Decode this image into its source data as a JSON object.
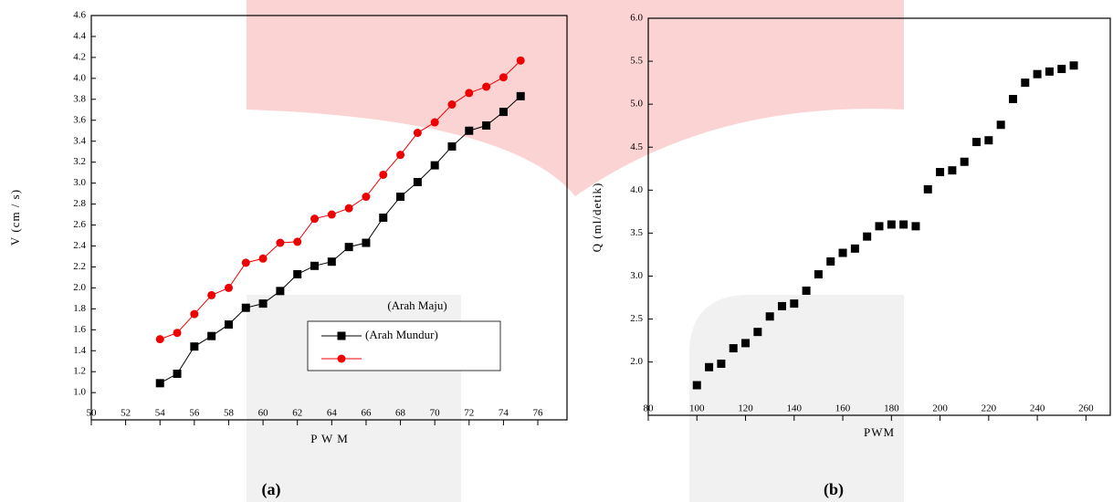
{
  "chart_data": [
    {
      "type": "line",
      "caption": "(a)",
      "x_label": "P W M",
      "y_label": "V (cm / s)",
      "x": [
        54,
        55,
        56,
        57,
        58,
        59,
        60,
        61,
        62,
        63,
        64,
        65,
        66,
        67,
        68,
        69,
        70,
        71,
        72,
        73,
        74,
        75
      ],
      "series": [
        {
          "name": "(Arah Mundur)",
          "color": "#000000",
          "marker": "square",
          "values": [
            1.09,
            1.18,
            1.44,
            1.54,
            1.65,
            1.81,
            1.85,
            1.97,
            2.13,
            2.21,
            2.25,
            2.39,
            2.43,
            2.67,
            2.87,
            3.01,
            3.17,
            3.35,
            3.5,
            3.55,
            3.68,
            3.83
          ]
        },
        {
          "name": "(Arah Maju)",
          "color": "#ee0000",
          "marker": "circle",
          "values": [
            1.51,
            1.57,
            1.75,
            1.93,
            2.0,
            2.24,
            2.28,
            2.43,
            2.44,
            2.66,
            2.7,
            2.76,
            2.87,
            3.08,
            3.27,
            3.48,
            3.58,
            3.75,
            3.86,
            3.92,
            4.01,
            4.17
          ]
        }
      ],
      "xlim": [
        50,
        77.7
      ],
      "xticks": [
        50,
        52,
        54,
        56,
        58,
        60,
        62,
        64,
        66,
        68,
        70,
        72,
        74,
        76
      ],
      "ylim": [
        0.74,
        4.6
      ],
      "yticks": [
        {
          "value": 1.0,
          "label": "1.0"
        },
        1.2,
        1.4,
        1.6,
        1.8,
        {
          "value": 2.0,
          "label": "2.0"
        },
        2.2,
        2.4,
        2.6,
        2.8,
        {
          "value": 3.0,
          "label": "3.0"
        },
        3.2,
        3.4,
        3.6,
        3.8,
        {
          "value": 4.0,
          "label": "4.0"
        },
        4.2,
        4.4,
        4.6
      ],
      "grid": false
    },
    {
      "type": "scatter",
      "caption": "(b)",
      "x_label": "PWM",
      "y_label": "Q (ml/detik)",
      "x": [
        100,
        105,
        110,
        115,
        120,
        125,
        130,
        135,
        140,
        145,
        150,
        155,
        160,
        165,
        170,
        175,
        180,
        185,
        190,
        195,
        200,
        205,
        210,
        215,
        220,
        225,
        230,
        235,
        240,
        245,
        250,
        255
      ],
      "series": [
        {
          "color": "#000000",
          "marker": "square",
          "values": [
            1.73,
            1.94,
            1.98,
            2.16,
            2.22,
            2.35,
            2.53,
            2.65,
            2.68,
            2.83,
            3.02,
            3.17,
            3.27,
            3.32,
            3.46,
            3.58,
            3.6,
            3.6,
            3.58,
            4.01,
            4.21,
            4.23,
            4.33,
            4.56,
            4.58,
            4.76,
            5.06,
            5.25,
            5.35,
            5.38,
            5.41,
            5.45
          ]
        }
      ],
      "xlim": [
        80,
        270
      ],
      "xticks": [
        80,
        100,
        120,
        140,
        160,
        180,
        200,
        220,
        240,
        260
      ],
      "ylim": [
        1.38,
        6.0
      ],
      "yticks": [
        {
          "value": 2.0,
          "label": "2.0"
        },
        2.5,
        {
          "value": 3.0,
          "label": "3.0"
        },
        3.5,
        {
          "value": 4.0,
          "label": "4.0"
        },
        4.5,
        {
          "value": 5.0,
          "label": "5.0"
        },
        5.5,
        {
          "value": 6.0,
          "label": "6.0"
        }
      ],
      "grid": false
    }
  ]
}
